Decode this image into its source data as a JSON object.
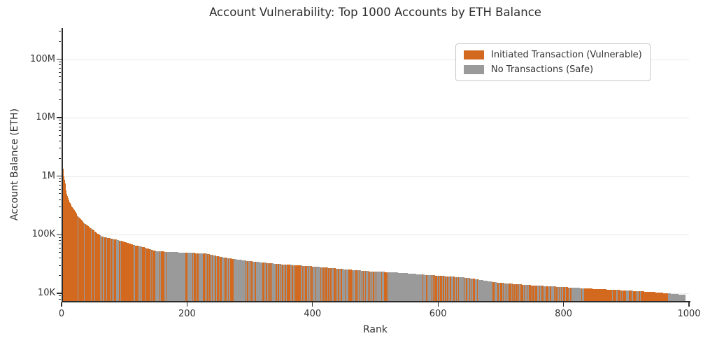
{
  "chart_data": {
    "type": "bar",
    "title": "Account Vulnerability: Top 1000 Accounts by ETH Balance",
    "xlabel": "Rank",
    "ylabel": "Account Balance (ETH)",
    "y_scale": "log",
    "xlim": [
      0,
      1000
    ],
    "ylim": [
      7400,
      340000000
    ],
    "x_ticks": [
      0,
      200,
      400,
      600,
      800,
      1000
    ],
    "y_ticks": [
      {
        "value": 10000,
        "label": "10K"
      },
      {
        "value": 100000,
        "label": "100K"
      },
      {
        "value": 1000000,
        "label": "1M"
      },
      {
        "value": 10000000,
        "label": "10M"
      },
      {
        "value": 100000000,
        "label": "100M"
      }
    ],
    "grid": "horizontal-major",
    "n_accounts": 1000,
    "legend": {
      "position": "upper-right",
      "entries": [
        {
          "label": "Initiated Transaction (Vulnerable)",
          "color": "#D2691E"
        },
        {
          "label": "No Transactions (Safe)",
          "color": "#9A9A9A"
        }
      ]
    },
    "colors": {
      "vulnerable": "#D2691E",
      "safe": "#9A9A9A",
      "axis": "#2b2b2b",
      "grid": "#e9e9e9",
      "text": "#333333"
    },
    "balance_envelope": [
      [
        1,
        2200000
      ],
      [
        2,
        1350000
      ],
      [
        3,
        1000000
      ],
      [
        4,
        870000
      ],
      [
        6,
        640000
      ],
      [
        8,
        500000
      ],
      [
        12,
        360000
      ],
      [
        18,
        285000
      ],
      [
        25,
        215000
      ],
      [
        35,
        160000
      ],
      [
        50,
        122000
      ],
      [
        58,
        103000
      ],
      [
        65,
        93000
      ],
      [
        90,
        81000
      ],
      [
        100,
        76000
      ],
      [
        115,
        67000
      ],
      [
        130,
        62000
      ],
      [
        150,
        53000
      ],
      [
        170,
        51000
      ],
      [
        230,
        48000
      ],
      [
        260,
        41000
      ],
      [
        300,
        35500
      ],
      [
        350,
        31500
      ],
      [
        400,
        29000
      ],
      [
        450,
        26000
      ],
      [
        500,
        23500
      ],
      [
        530,
        23000
      ],
      [
        590,
        20500
      ],
      [
        650,
        18500
      ],
      [
        700,
        15200
      ],
      [
        750,
        13800
      ],
      [
        800,
        12900
      ],
      [
        850,
        12000
      ],
      [
        900,
        11300
      ],
      [
        950,
        10500
      ],
      [
        1000,
        9400
      ]
    ],
    "color_pattern": {
      "seed": 7,
      "segments": [
        {
          "from": 1,
          "to": 60,
          "p_vulnerable": 0.88
        },
        {
          "from": 61,
          "to": 170,
          "p_vulnerable": 0.62
        },
        {
          "from": 171,
          "to": 230,
          "p_vulnerable": 0.5
        },
        {
          "from": 231,
          "to": 330,
          "p_vulnerable": 0.45
        },
        {
          "from": 331,
          "to": 450,
          "p_vulnerable": 0.52
        },
        {
          "from": 451,
          "to": 530,
          "p_vulnerable": 0.48
        },
        {
          "from": 531,
          "to": 590,
          "p_vulnerable": 0.15
        },
        {
          "from": 591,
          "to": 820,
          "p_vulnerable": 0.47
        },
        {
          "from": 821,
          "to": 930,
          "p_vulnerable": 0.55
        },
        {
          "from": 931,
          "to": 975,
          "p_vulnerable": 0.7
        },
        {
          "from": 976,
          "to": 1000,
          "p_vulnerable": 0.0
        }
      ],
      "forced_safe_ranges": [
        [
          1,
          1
        ],
        [
          170,
          196
        ],
        [
          276,
          294
        ],
        [
          528,
          578
        ],
        [
          668,
          690
        ],
        [
          818,
          833
        ],
        [
          973,
          1000
        ]
      ],
      "forced_vulnerable_ranges": [
        [
          2,
          12
        ],
        [
          95,
          112
        ],
        [
          840,
          878
        ],
        [
          930,
          972
        ]
      ]
    }
  }
}
